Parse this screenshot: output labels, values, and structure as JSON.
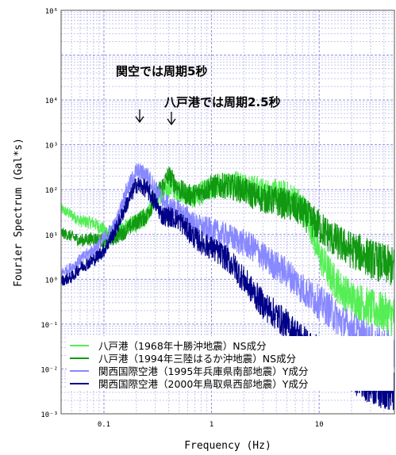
{
  "chart_data": {
    "type": "line",
    "xlabel": "Frequency (Hz)",
    "ylabel": "Fourier Spectrum (Gal*s)",
    "x_scale": "log",
    "y_scale": "log",
    "xlim": [
      0.04,
      50
    ],
    "ylim": [
      0.001,
      1000000
    ],
    "x_ticks": [
      {
        "value": 0.1,
        "label": "0.1"
      },
      {
        "value": 1,
        "label": "1"
      },
      {
        "value": 10,
        "label": "10"
      }
    ],
    "y_ticks": [
      {
        "value": 1000000,
        "label": "10⁶"
      },
      {
        "value": 10000,
        "label": "10⁴"
      },
      {
        "value": 1000,
        "label": "10³"
      },
      {
        "value": 100,
        "label": "10²"
      },
      {
        "value": 10,
        "label": "10¹"
      },
      {
        "value": 1,
        "label": "10⁰"
      },
      {
        "value": 0.1,
        "label": "10⁻¹"
      },
      {
        "value": 0.01,
        "label": "10⁻²"
      },
      {
        "value": 0.001,
        "label": "10⁻³"
      }
    ],
    "grid": true,
    "legend_position": "bottom-right",
    "annotations": [
      {
        "text": "関空では周期5秒",
        "x": 0.2
      },
      {
        "text": "八戸港では周期2.5秒",
        "x": 0.4
      }
    ],
    "series": [
      {
        "name": "八戸港（1968年十勝沖地震）NS成分",
        "color": "#55ee55",
        "x": [
          0.04,
          0.05,
          0.06,
          0.08,
          0.1,
          0.13,
          0.16,
          0.2,
          0.25,
          0.3,
          0.35,
          0.4,
          0.5,
          0.6,
          0.7,
          0.8,
          1,
          1.3,
          1.6,
          2,
          2.5,
          3,
          4,
          5,
          6,
          7,
          8,
          10,
          13,
          16,
          20,
          25,
          30,
          40,
          50
        ],
        "y": [
          40,
          30,
          22,
          20,
          14,
          11,
          18,
          20,
          30,
          80,
          90,
          130,
          110,
          90,
          80,
          100,
          130,
          150,
          180,
          160,
          130,
          110,
          100,
          90,
          75,
          50,
          30,
          4.5,
          1.5,
          0.8,
          0.5,
          0.4,
          0.3,
          0.25,
          0.2
        ]
      },
      {
        "name": "八戸港（1994年三陸はるか沖地震）NS成分",
        "color": "#119911",
        "x": [
          0.04,
          0.05,
          0.06,
          0.08,
          0.1,
          0.13,
          0.16,
          0.2,
          0.25,
          0.3,
          0.35,
          0.4,
          0.5,
          0.6,
          0.7,
          0.8,
          1,
          1.3,
          1.6,
          2,
          2.5,
          3,
          4,
          5,
          6,
          7,
          8,
          10,
          13,
          16,
          20,
          25,
          30,
          40,
          50
        ],
        "y": [
          12,
          10,
          8,
          9,
          8,
          10,
          14,
          22,
          30,
          80,
          140,
          250,
          120,
          90,
          90,
          110,
          140,
          150,
          140,
          120,
          90,
          80,
          70,
          60,
          50,
          40,
          30,
          20,
          11,
          8,
          6,
          5,
          4,
          3,
          2.5
        ]
      },
      {
        "name": "関西国際空港（1995年兵庫県南部地震）Y成分",
        "color": "#8888ff",
        "x": [
          0.04,
          0.05,
          0.06,
          0.08,
          0.1,
          0.13,
          0.16,
          0.2,
          0.25,
          0.3,
          0.35,
          0.4,
          0.5,
          0.6,
          0.7,
          0.8,
          1,
          1.3,
          1.6,
          2,
          2.5,
          3,
          4,
          5,
          6,
          7,
          8,
          10,
          13,
          16,
          20,
          25,
          30,
          40,
          50
        ],
        "y": [
          1.5,
          2,
          3,
          5,
          9,
          20,
          100,
          300,
          250,
          120,
          70,
          50,
          40,
          30,
          20,
          18,
          15,
          12,
          10,
          8,
          6,
          4,
          2.5,
          1.8,
          1.2,
          0.8,
          0.6,
          0.4,
          0.25,
          0.15,
          0.1,
          0.07,
          0.05,
          0.04,
          0.03
        ]
      },
      {
        "name": "関西国際空港（2000年鳥取県西部地震）Y成分",
        "color": "#000088",
        "x": [
          0.04,
          0.05,
          0.06,
          0.08,
          0.1,
          0.13,
          0.16,
          0.2,
          0.25,
          0.3,
          0.35,
          0.4,
          0.5,
          0.6,
          0.7,
          0.8,
          1,
          1.3,
          1.6,
          2,
          2.5,
          3,
          4,
          5,
          6,
          7,
          8,
          10,
          13,
          16,
          20,
          25,
          30,
          40,
          50
        ],
        "y": [
          1,
          1.2,
          2,
          3,
          5,
          15,
          50,
          150,
          120,
          60,
          30,
          30,
          25,
          15,
          10,
          8,
          6,
          4,
          2.5,
          1.2,
          0.6,
          0.35,
          0.2,
          0.12,
          0.08,
          0.06,
          0.04,
          0.03,
          0.02,
          0.015,
          0.01,
          0.008,
          0.006,
          0.005,
          0.004
        ]
      }
    ]
  }
}
